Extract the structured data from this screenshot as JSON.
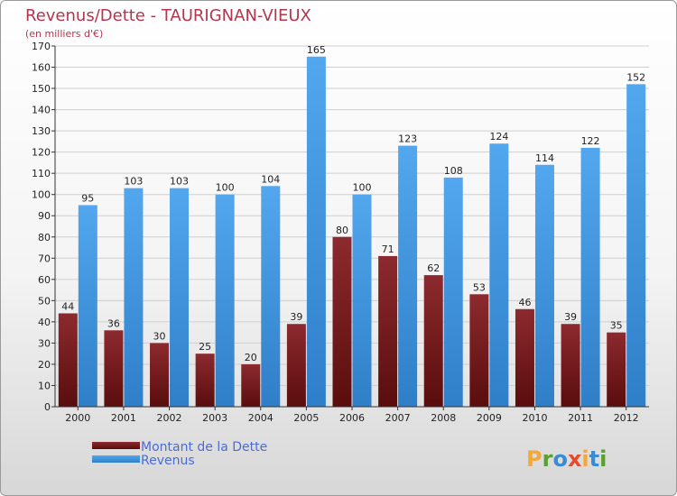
{
  "chart_data": {
    "type": "bar",
    "title": "Revenus/Dette - TAURIGNAN-VIEUX",
    "subtitle": "(en milliers d'€)",
    "categories": [
      "2000",
      "2001",
      "2002",
      "2003",
      "2004",
      "2005",
      "2006",
      "2007",
      "2008",
      "2009",
      "2010",
      "2011",
      "2012"
    ],
    "series": [
      {
        "name": "Montant de la Dette",
        "color": "#7b1c1c",
        "values": [
          44,
          36,
          30,
          25,
          20,
          39,
          80,
          71,
          62,
          53,
          46,
          39,
          35
        ]
      },
      {
        "name": "Revenus",
        "color": "#3a8ad6",
        "values": [
          95,
          103,
          103,
          100,
          104,
          165,
          100,
          123,
          108,
          124,
          114,
          122,
          152
        ]
      }
    ],
    "ylim": [
      0,
      170
    ],
    "ytick_step": 10,
    "grid": true,
    "legend": "bottom-left"
  },
  "brand": {
    "text": "Proxiti"
  }
}
